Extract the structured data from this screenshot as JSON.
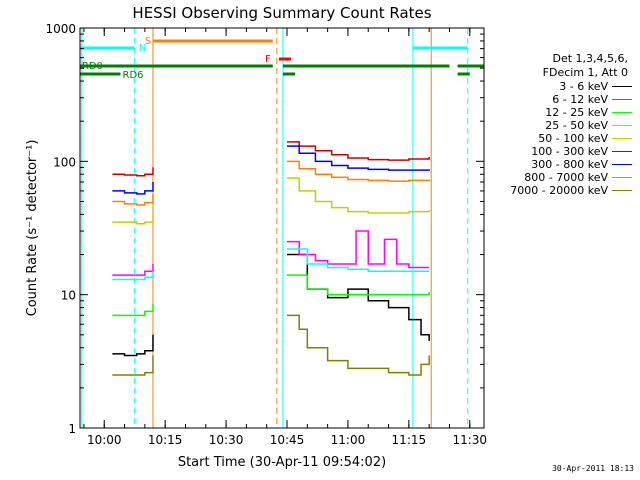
{
  "chart_data": {
    "type": "line",
    "title": "HESSI Observing Summary Count Rates",
    "xlabel": "Start Time (30-Apr-11 09:54:02)",
    "ylabel": "Count Rate (s⁻¹ detector⁻¹)",
    "y_scale": "log",
    "xlim": [
      "09:54:02",
      "11:33:30"
    ],
    "ylim": [
      1,
      1000
    ],
    "x_ticks": [
      "10:00",
      "10:15",
      "10:30",
      "10:45",
      "11:00",
      "11:15",
      "11:30"
    ],
    "y_ticks": [
      "1",
      "10",
      "100",
      "1000"
    ],
    "legend_header": [
      "Det 1,3,4,5,6,",
      "FDecim 1, Att 0"
    ],
    "legend_placement": "right",
    "series": [
      {
        "name": "3 - 6 keV",
        "color": "#000000",
        "segments": [
          {
            "x": [
              "10:02",
              "10:05",
              "10:08",
              "10:10",
              "10:12"
            ],
            "y": [
              3.6,
              3.5,
              3.6,
              3.8,
              5.0
            ]
          },
          {
            "x": [
              "10:45",
              "10:50",
              "10:55",
              "11:00",
              "11:05",
              "11:10",
              "11:15",
              "11:18",
              "11:20"
            ],
            "y": [
              20,
              11,
              9.5,
              11,
              9,
              8,
              6.5,
              5,
              4.5
            ]
          }
        ]
      },
      {
        "name": "6 - 12 keV",
        "color": "#ff00ff",
        "segments": [
          {
            "x": [
              "10:02",
              "10:05",
              "10:08",
              "10:10",
              "10:12"
            ],
            "y": [
              14,
              14,
              14,
              15,
              17
            ]
          },
          {
            "x": [
              "10:45",
              "10:48",
              "10:52",
              "10:55",
              "11:00",
              "11:02",
              "11:05",
              "11:09",
              "11:12",
              "11:15",
              "11:20"
            ],
            "y": [
              25,
              20,
              18,
              17,
              17,
              30,
              17,
              26,
              17,
              16,
              16
            ]
          }
        ]
      },
      {
        "name": "12 - 25 keV",
        "color": "#00ff00",
        "segments": [
          {
            "x": [
              "10:02",
              "10:05",
              "10:08",
              "10:10",
              "10:12"
            ],
            "y": [
              7,
              7,
              7,
              7.5,
              8.5
            ]
          },
          {
            "x": [
              "10:45",
              "10:50",
              "10:55",
              "11:00",
              "11:05",
              "11:10",
              "11:15",
              "11:20"
            ],
            "y": [
              14,
              11,
              10,
              10,
              10,
              10,
              10,
              10.5
            ]
          }
        ]
      },
      {
        "name": "25 - 50 keV",
        "color": "#00ffff",
        "segments": [
          {
            "x": [
              "10:02",
              "10:05",
              "10:08",
              "10:10",
              "10:12"
            ],
            "y": [
              13,
              13,
              13,
              13.5,
              15
            ]
          },
          {
            "x": [
              "10:45",
              "10:50",
              "10:55",
              "11:00",
              "11:05",
              "11:10",
              "11:15",
              "11:20"
            ],
            "y": [
              22,
              17,
              16,
              15.5,
              15,
              15,
              15,
              15
            ]
          }
        ]
      },
      {
        "name": "50 - 100 keV",
        "color": "#cccc00",
        "segments": [
          {
            "x": [
              "10:02",
              "10:05",
              "10:08",
              "10:10",
              "10:12"
            ],
            "y": [
              35,
              35,
              34,
              35,
              40
            ]
          },
          {
            "x": [
              "10:45",
              "10:48",
              "10:52",
              "10:56",
              "11:00",
              "11:05",
              "11:10",
              "11:15",
              "11:20"
            ],
            "y": [
              75,
              60,
              50,
              45,
              42,
              41,
              41,
              42,
              43
            ]
          }
        ]
      },
      {
        "name": "100 - 300 keV",
        "color": "#cc0000",
        "segments": [
          {
            "x": [
              "10:02",
              "10:05",
              "10:08",
              "10:10",
              "10:12"
            ],
            "y": [
              80,
              79,
              78,
              80,
              90
            ]
          },
          {
            "x": [
              "10:45",
              "10:48",
              "10:52",
              "10:56",
              "11:00",
              "11:05",
              "11:10",
              "11:15",
              "11:20"
            ],
            "y": [
              140,
              130,
              120,
              112,
              106,
              103,
              102,
              104,
              108
            ]
          }
        ]
      },
      {
        "name": "300 - 800 keV",
        "color": "#0000ff",
        "segments": [
          {
            "x": [
              "10:02",
              "10:05",
              "10:08",
              "10:10",
              "10:12"
            ],
            "y": [
              60,
              58,
              57,
              60,
              70
            ]
          },
          {
            "x": [
              "10:45",
              "10:48",
              "10:52",
              "10:56",
              "11:00",
              "11:05",
              "11:10",
              "11:15",
              "11:20"
            ],
            "y": [
              130,
              115,
              100,
              93,
              89,
              87,
              86,
              86,
              87
            ]
          }
        ]
      },
      {
        "name": "800 - 7000 keV",
        "color": "#ff8000",
        "segments": [
          {
            "x": [
              "10:02",
              "10:05",
              "10:08",
              "10:10",
              "10:12"
            ],
            "y": [
              50,
              48,
              47,
              49,
              57
            ]
          },
          {
            "x": [
              "10:45",
              "10:48",
              "10:52",
              "10:56",
              "11:00",
              "11:05",
              "11:10",
              "11:15",
              "11:20"
            ],
            "y": [
              100,
              88,
              80,
              76,
              73,
              72,
              71,
              72,
              73
            ]
          }
        ]
      },
      {
        "name": "7000 - 20000 keV",
        "color": "#808000",
        "segments": [
          {
            "x": [
              "10:02",
              "10:05",
              "10:08",
              "10:10",
              "10:12"
            ],
            "y": [
              2.5,
              2.5,
              2.5,
              2.6,
              3.5
            ]
          },
          {
            "x": [
              "10:45",
              "10:48",
              "10:50",
              "10:55",
              "11:00",
              "11:05",
              "11:10",
              "11:15",
              "11:18",
              "11:20"
            ],
            "y": [
              7,
              5.5,
              4,
              3.2,
              2.8,
              2.8,
              2.6,
              2.5,
              3,
              3.5
            ]
          }
        ]
      }
    ],
    "vlines": [
      {
        "x": "09:54:30",
        "color": "#00ffff",
        "style": "solid"
      },
      {
        "x": "10:07:30",
        "color": "#00ffff",
        "style": "dashed"
      },
      {
        "x": "10:12:00",
        "color": "#ff8000",
        "style": "solid"
      },
      {
        "x": "10:42:30",
        "color": "#ff8000",
        "style": "dashed"
      },
      {
        "x": "10:44:00",
        "color": "#00ffff",
        "style": "solid"
      },
      {
        "x": "11:16:00",
        "color": "#00ffff",
        "style": "solid"
      },
      {
        "x": "11:20:30",
        "color": "#ff8000",
        "style": "solid"
      },
      {
        "x": "11:29:30",
        "color": "#00ffff",
        "style": "dashed"
      }
    ],
    "flag_bars": [
      {
        "label": "N",
        "color": "#00ffff",
        "segments": [
          [
            "09:54:02",
            "10:07:30"
          ],
          [
            "11:16:00",
            "11:29:30"
          ]
        ]
      },
      {
        "label": "S",
        "color": "#ff8000",
        "segments": [
          [
            "10:12:00",
            "10:41:30"
          ]
        ]
      },
      {
        "label": "F",
        "color": "#ff0000",
        "segments": [
          [
            "10:43:00",
            "10:46:00"
          ]
        ]
      },
      {
        "label": "RD0",
        "color": "#008000",
        "segments": [
          [
            "09:54:02",
            "10:41:30"
          ],
          [
            "10:44:00",
            "11:25:00"
          ],
          [
            "11:27:00",
            "11:33:30"
          ]
        ]
      },
      {
        "label": "RD6",
        "color": "#008000",
        "segments": [
          [
            "09:54:02",
            "10:04:00"
          ],
          [
            "10:44:00",
            "10:47:00"
          ],
          [
            "11:27:00",
            "11:30:00"
          ]
        ]
      }
    ]
  },
  "footer": {
    "date_stamp": "30-Apr-2011 18:13"
  }
}
